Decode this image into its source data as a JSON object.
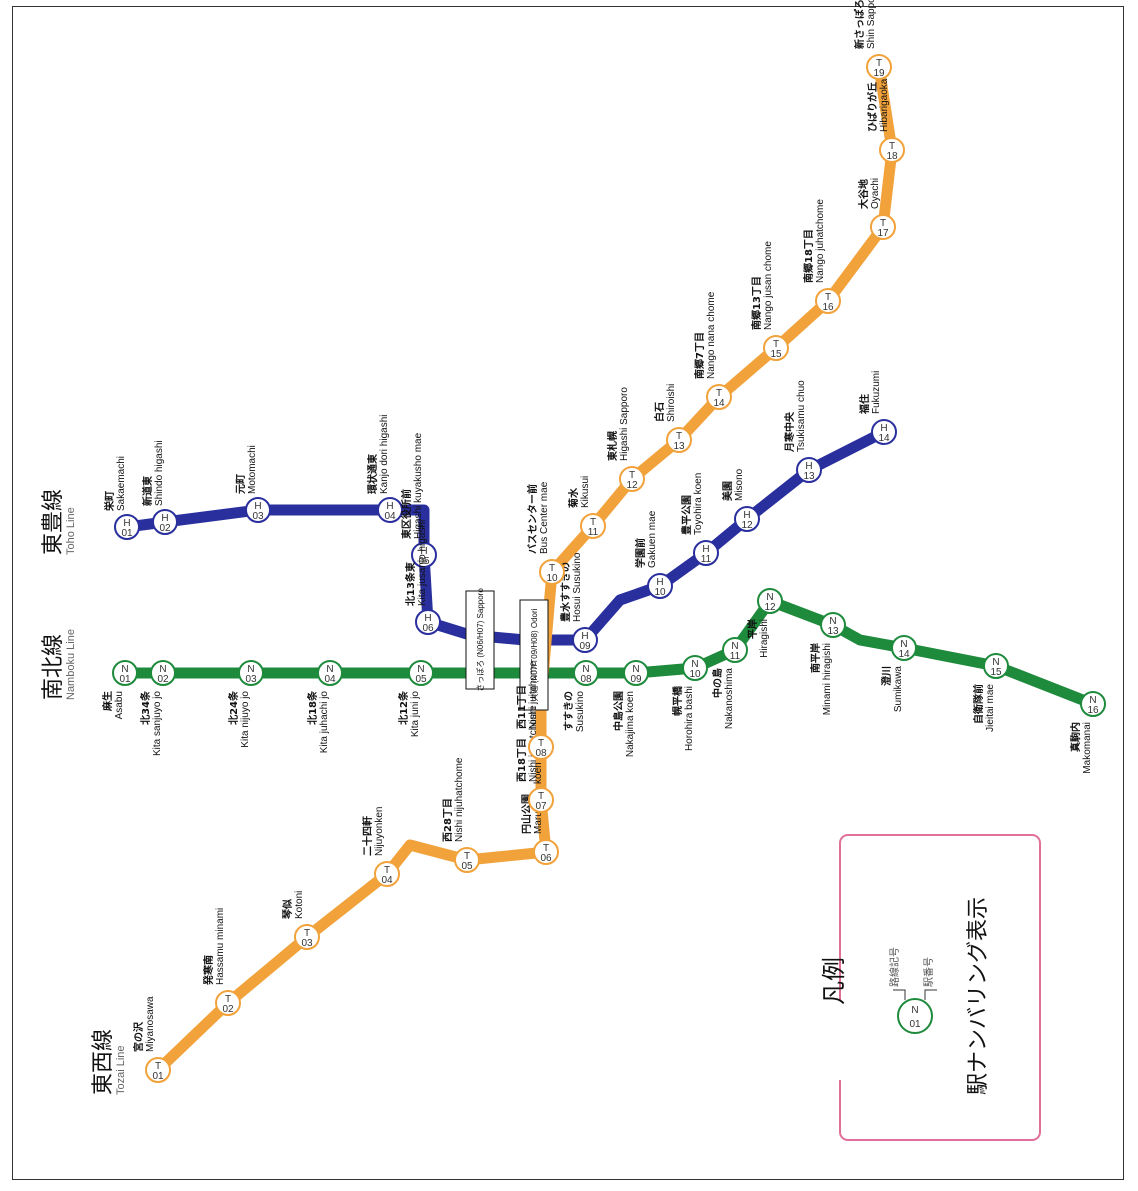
{
  "colors": {
    "tozai": "#f2a23a",
    "nanboku": "#1e8a3c",
    "toho": "#2a2f9e",
    "legend_border": "#e0709a"
  },
  "lines": {
    "toho": {
      "jp": "東豊線",
      "en": "Toho Line",
      "letter": "H"
    },
    "nanboku": {
      "jp": "南北線",
      "en": "Namboku Line",
      "letter": "N"
    },
    "tozai": {
      "jp": "東西線",
      "en": "Tozai Line",
      "letter": "T"
    }
  },
  "stations": {
    "toho": [
      {
        "num": "01",
        "jp": "栄町",
        "en": "Sakaemachi"
      },
      {
        "num": "02",
        "jp": "新道東",
        "en": "Shindo higashi"
      },
      {
        "num": "03",
        "jp": "元町",
        "en": "Motomachi"
      },
      {
        "num": "04",
        "jp": "環状通東",
        "en": "Kanjo dori higashi"
      },
      {
        "num": "05",
        "jp": "東区役所前",
        "en": "Higashi kuyakusho mae"
      },
      {
        "num": "06",
        "jp": "北13条東",
        "en": "Kita jusanjo higashi"
      },
      {
        "num": "09",
        "jp": "豊水すすきの",
        "en": "Hosui Susukino"
      },
      {
        "num": "10",
        "jp": "学園前",
        "en": "Gakuen mae"
      },
      {
        "num": "11",
        "jp": "豊平公園",
        "en": "Toyohira koen"
      },
      {
        "num": "12",
        "jp": "美園",
        "en": "Misono"
      },
      {
        "num": "13",
        "jp": "月寒中央",
        "en": "Tsukisamu chuo"
      },
      {
        "num": "14",
        "jp": "福住",
        "en": "Fukuzumi"
      }
    ],
    "nanboku": [
      {
        "num": "01",
        "jp": "麻生",
        "en": "Asabu"
      },
      {
        "num": "02",
        "jp": "北34条",
        "en": "Kita sanjuyo jo"
      },
      {
        "num": "03",
        "jp": "北24条",
        "en": "Kita nijuyo jo"
      },
      {
        "num": "04",
        "jp": "北18条",
        "en": "Kita juhachi jo"
      },
      {
        "num": "05",
        "jp": "北12条",
        "en": "Kita juni jo"
      },
      {
        "num": "08",
        "jp": "すすきの",
        "en": "Susukino"
      },
      {
        "num": "09",
        "jp": "中島公園",
        "en": "Nakajima koen"
      },
      {
        "num": "10",
        "jp": "幌平橋",
        "en": "Horohira bashi"
      },
      {
        "num": "11",
        "jp": "中の島",
        "en": "Nakanoshima"
      },
      {
        "num": "12",
        "jp": "平岸",
        "en": "Hiragishi"
      },
      {
        "num": "13",
        "jp": "南平岸",
        "en": "Minami hiragishi"
      },
      {
        "num": "14",
        "jp": "澄川",
        "en": "Sumikawa"
      },
      {
        "num": "15",
        "jp": "自衛隊前",
        "en": "Jieitai mae"
      },
      {
        "num": "16",
        "jp": "真駒内",
        "en": "Makomanai"
      }
    ],
    "tozai": [
      {
        "num": "01",
        "jp": "宮の沢",
        "en": "Miyanosawa"
      },
      {
        "num": "02",
        "jp": "発寒南",
        "en": "Hassamu minami"
      },
      {
        "num": "03",
        "jp": "琴似",
        "en": "Kotoni"
      },
      {
        "num": "04",
        "jp": "二十四軒",
        "en": "Nijuyonken"
      },
      {
        "num": "05",
        "jp": "西28丁目",
        "en": "Nishi nijuhatchome"
      },
      {
        "num": "06",
        "jp": "円山公園",
        "en": "Maruyama koen"
      },
      {
        "num": "07",
        "jp": "西18丁目",
        "en": "Nishi juhatchome"
      },
      {
        "num": "08",
        "jp": "西11丁目",
        "en": "Nishi juitchome"
      },
      {
        "num": "10",
        "jp": "バスセンター前",
        "en": "Bus Center mae"
      },
      {
        "num": "11",
        "jp": "菊水",
        "en": "Kikusui"
      },
      {
        "num": "12",
        "jp": "東札幌",
        "en": "Higashi Sapporo"
      },
      {
        "num": "13",
        "jp": "白石",
        "en": "Shiroishi"
      },
      {
        "num": "14",
        "jp": "南郷7丁目",
        "en": "Nango nana chome"
      },
      {
        "num": "15",
        "jp": "南郷13丁目",
        "en": "Nango jusan chome"
      },
      {
        "num": "16",
        "jp": "南郷18丁目",
        "en": "Nango juhatchome"
      },
      {
        "num": "17",
        "jp": "大谷地",
        "en": "Oyachi"
      },
      {
        "num": "18",
        "jp": "ひばりが丘",
        "en": "Hibarigaoka"
      },
      {
        "num": "19",
        "jp": "新さっぽろ",
        "en": "Shin Sapporo"
      }
    ]
  },
  "transfer_boxes": {
    "sapporo": {
      "text": "さっぽろ (N06/H07) Sapporo"
    },
    "odori": {
      "text": "大通 (N07/T09/H08) Odori"
    }
  },
  "legend": {
    "title": "凡例",
    "caption": "駅ナンバリング表示",
    "sample_letter": "N",
    "sample_num": "01",
    "line_symbol_label": "路線記号",
    "number_label": "駅番号"
  }
}
